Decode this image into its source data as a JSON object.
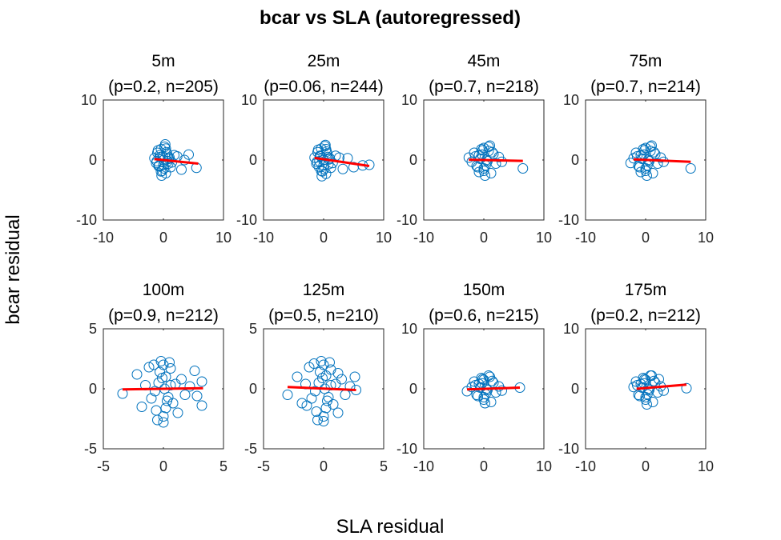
{
  "figure": {
    "title": "bcar vs SLA (autoregressed)",
    "xlabel": "SLA residual",
    "ylabel": "bcar residual"
  },
  "colors": {
    "points": "#0072BD",
    "fit": "#FF0000",
    "axes": "#262626"
  },
  "chart_data": [
    {
      "type": "scatter",
      "title": "5m",
      "subtitle": "(p=0.2, n=205)",
      "xlim": [
        -10,
        10
      ],
      "ylim": [
        -10,
        10
      ],
      "xticks": [
        "-10",
        "0",
        "10"
      ],
      "yticks": [
        "10",
        "0",
        "-10"
      ],
      "x": [
        -1.5,
        -1.2,
        -1.0,
        -0.8,
        -0.6,
        -0.4,
        -0.2,
        0.0,
        0.2,
        0.4,
        0.6,
        0.8,
        1.0,
        1.2,
        -0.9,
        -0.3,
        0.3,
        0.9,
        -1.1,
        0.1,
        -0.5,
        0.5,
        1.4,
        1.8,
        2.3,
        3.0,
        3.5,
        4.2,
        5.5,
        -0.7,
        0.7,
        -0.1,
        0.0,
        0.4,
        -0.4
      ],
      "y": [
        0.3,
        -0.5,
        1.2,
        -1.0,
        0.8,
        1.8,
        -1.8,
        0.0,
        2.2,
        -2.2,
        1.0,
        -0.6,
        0.4,
        -1.2,
        1.6,
        -2.6,
        2.6,
        0.2,
        -0.2,
        -1.4,
        0.5,
        1.3,
        -0.4,
        0.8,
        0.6,
        -1.6,
        0.0,
        0.9,
        -1.3,
        -0.9,
        -0.2,
        0.6,
        -0.8,
        1.9,
        -1.9
      ],
      "fit": {
        "x": [
          -1.5,
          5.8
        ],
        "y": [
          0.15,
          -0.6
        ]
      }
    },
    {
      "type": "scatter",
      "title": "25m",
      "subtitle": "(p=0.06, n=244)",
      "xlim": [
        -10,
        10
      ],
      "ylim": [
        -10,
        10
      ],
      "xticks": [
        "-10",
        "0",
        "10"
      ],
      "yticks": [
        "10",
        "0",
        "-10"
      ],
      "x": [
        -1.5,
        -1.2,
        -1.0,
        -0.8,
        -0.6,
        -0.4,
        -0.2,
        0.0,
        0.2,
        0.4,
        0.6,
        0.8,
        1.0,
        1.2,
        -0.9,
        -0.3,
        0.3,
        0.9,
        -1.1,
        0.1,
        -0.5,
        0.5,
        1.5,
        2.0,
        2.6,
        3.2,
        4.0,
        5.0,
        6.5,
        7.6,
        -0.7,
        0.7,
        0.0,
        0.4,
        -0.4
      ],
      "y": [
        0.4,
        -0.6,
        1.3,
        -1.1,
        0.7,
        1.9,
        -1.9,
        0.0,
        2.3,
        -2.3,
        1.1,
        -0.7,
        0.3,
        -1.3,
        1.7,
        -2.7,
        2.5,
        0.1,
        -0.3,
        -1.5,
        0.6,
        1.4,
        -0.5,
        0.7,
        0.4,
        -1.5,
        0.3,
        -1.2,
        -0.9,
        -0.8,
        -0.2,
        0.5,
        -0.9,
        1.8,
        -1.8
      ],
      "fit": {
        "x": [
          -1.5,
          7.6
        ],
        "y": [
          0.35,
          -1.0
        ]
      }
    },
    {
      "type": "scatter",
      "title": "45m",
      "subtitle": "(p=0.7, n=218)",
      "xlim": [
        -10,
        10
      ],
      "ylim": [
        -10,
        10
      ],
      "xticks": [
        "-10",
        "0",
        "10"
      ],
      "yticks": [
        "10",
        "0",
        "-10"
      ],
      "x": [
        -2.5,
        -2.0,
        -1.6,
        -1.2,
        -0.8,
        -0.4,
        0.0,
        0.4,
        0.8,
        1.2,
        1.6,
        2.0,
        2.5,
        -1.0,
        -0.2,
        0.2,
        1.0,
        -0.6,
        0.6,
        0.0,
        -1.4,
        1.4,
        3.0,
        6.5,
        -0.3,
        0.3,
        0.0,
        -0.8,
        0.8
      ],
      "y": [
        0.4,
        -0.3,
        1.2,
        -1.0,
        0.8,
        1.8,
        -1.8,
        0.0,
        2.2,
        -2.2,
        1.0,
        -0.6,
        0.5,
        -1.2,
        1.6,
        -2.6,
        2.4,
        0.2,
        -0.2,
        -1.4,
        0.6,
        1.3,
        -0.3,
        -1.4,
        0.9,
        -0.9,
        2.0,
        -2.0,
        1.5
      ],
      "fit": {
        "x": [
          -2.5,
          6.5
        ],
        "y": [
          0.05,
          -0.15
        ]
      }
    },
    {
      "type": "scatter",
      "title": "75m",
      "subtitle": "(p=0.7, n=214)",
      "xlim": [
        -10,
        10
      ],
      "ylim": [
        -10,
        10
      ],
      "xticks": [
        "-10",
        "0",
        "10"
      ],
      "yticks": [
        "10",
        "0",
        "-10"
      ],
      "x": [
        -2.5,
        -2.0,
        -1.6,
        -1.2,
        -0.8,
        -0.4,
        0.0,
        0.4,
        0.8,
        1.2,
        1.6,
        2.0,
        2.5,
        -1.0,
        -0.2,
        0.2,
        1.0,
        -0.6,
        0.6,
        0.0,
        -1.4,
        1.4,
        3.0,
        7.5,
        -0.3,
        0.3,
        0.0,
        -0.8,
        0.8
      ],
      "y": [
        -0.5,
        0.3,
        1.2,
        -1.0,
        0.8,
        1.8,
        -1.8,
        0.0,
        2.2,
        -2.2,
        1.0,
        -0.6,
        0.4,
        -1.2,
        1.6,
        -2.6,
        2.4,
        0.2,
        -0.2,
        -1.4,
        0.6,
        1.3,
        -0.3,
        -1.4,
        0.9,
        -0.9,
        2.0,
        -2.0,
        1.5
      ],
      "fit": {
        "x": [
          -2.0,
          7.5
        ],
        "y": [
          0.1,
          -0.3
        ]
      }
    },
    {
      "type": "scatter",
      "title": "100m",
      "subtitle": "(p=0.9, n=212)",
      "xlim": [
        -5,
        5
      ],
      "ylim": [
        -5,
        5
      ],
      "xticks": [
        "-5",
        "0",
        "5"
      ],
      "yticks": [
        "5",
        "0",
        "-5"
      ],
      "x": [
        -3.4,
        -2.2,
        -1.8,
        -1.5,
        -1.2,
        -1.0,
        -0.8,
        -0.6,
        -0.4,
        -0.2,
        0.0,
        0.2,
        0.4,
        0.6,
        0.8,
        1.0,
        1.2,
        1.5,
        1.8,
        2.2,
        2.6,
        2.8,
        3.2,
        3.2,
        -0.5,
        0.5,
        0.0,
        -0.3,
        0.3,
        0.1,
        -0.1,
        0.0,
        0.6,
        -0.7,
        0.2
      ],
      "y": [
        -0.4,
        1.2,
        -1.5,
        0.3,
        1.8,
        -0.8,
        2.0,
        -1.8,
        0.5,
        2.3,
        -2.3,
        1.0,
        -0.7,
        1.7,
        -1.2,
        0.4,
        -2.0,
        0.8,
        -0.5,
        0.2,
        1.5,
        -0.6,
        0.6,
        -1.4,
        -2.6,
        2.2,
        -2.8,
        1.4,
        -1.0,
        0.0,
        0.9,
        2.0,
        0.3,
        -0.2,
        -1.6
      ],
      "fit": {
        "x": [
          -3.4,
          3.3
        ],
        "y": [
          -0.05,
          0.05
        ]
      }
    },
    {
      "type": "scatter",
      "title": "125m",
      "subtitle": "(p=0.5, n=210)",
      "xlim": [
        -5,
        5
      ],
      "ylim": [
        -5,
        5
      ],
      "xticks": [
        "-5",
        "0",
        "5"
      ],
      "yticks": [
        "5",
        "0",
        "-5"
      ],
      "x": [
        -3.0,
        -2.2,
        -1.8,
        -1.5,
        -1.2,
        -1.0,
        -0.8,
        -0.6,
        -0.4,
        -0.2,
        0.0,
        0.2,
        0.4,
        0.6,
        0.8,
        1.0,
        1.2,
        1.5,
        1.8,
        2.2,
        2.6,
        2.7,
        -0.5,
        0.5,
        0.0,
        -0.3,
        0.3,
        0.1,
        -0.1,
        0.0,
        0.6,
        -0.7,
        0.2,
        -1.4,
        1.2
      ],
      "y": [
        -0.5,
        1.0,
        -1.2,
        0.4,
        1.8,
        -0.8,
        2.1,
        -1.9,
        0.5,
        2.3,
        -2.3,
        1.1,
        -0.7,
        1.6,
        -1.3,
        0.4,
        -2.0,
        0.8,
        -0.5,
        0.2,
        1.0,
        -0.1,
        -2.6,
        2.2,
        -2.7,
        1.4,
        -1.0,
        0.0,
        0.9,
        2.0,
        0.3,
        -0.2,
        -1.6,
        -1.4,
        1.3
      ],
      "fit": {
        "x": [
          -3.0,
          2.7
        ],
        "y": [
          0.15,
          -0.1
        ]
      }
    },
    {
      "type": "scatter",
      "title": "150m",
      "subtitle": "(p=0.6, n=215)",
      "xlim": [
        -10,
        10
      ],
      "ylim": [
        -10,
        10
      ],
      "xticks": [
        "-10",
        "0",
        "10"
      ],
      "yticks": [
        "10",
        "0",
        "-10"
      ],
      "x": [
        -2.8,
        -2.0,
        -1.6,
        -1.2,
        -0.8,
        -0.4,
        0.0,
        0.4,
        0.8,
        1.2,
        1.6,
        2.0,
        2.5,
        -1.0,
        -0.2,
        0.2,
        1.0,
        -0.6,
        0.6,
        0.0,
        -1.4,
        1.4,
        3.0,
        6.0,
        -0.3,
        0.3,
        0.0
      ],
      "y": [
        -0.4,
        0.3,
        1.2,
        -1.0,
        0.8,
        1.8,
        -1.8,
        0.0,
        2.2,
        -2.2,
        1.0,
        -0.6,
        0.4,
        -1.2,
        1.6,
        -2.4,
        2.0,
        0.2,
        -0.2,
        -1.4,
        0.6,
        1.3,
        -0.3,
        0.2,
        0.9,
        -0.9,
        1.5
      ],
      "fit": {
        "x": [
          -2.8,
          6.0
        ],
        "y": [
          -0.1,
          0.2
        ]
      }
    },
    {
      "type": "scatter",
      "title": "175m",
      "subtitle": "(p=0.2, n=212)",
      "xlim": [
        -10,
        10
      ],
      "ylim": [
        -10,
        10
      ],
      "xticks": [
        "-10",
        "0",
        "10"
      ],
      "yticks": [
        "10",
        "0",
        "-10"
      ],
      "x": [
        -2.0,
        -1.6,
        -1.2,
        -0.8,
        -0.4,
        0.0,
        0.4,
        0.8,
        1.2,
        1.6,
        2.0,
        2.5,
        -1.0,
        -0.2,
        0.2,
        1.0,
        -0.6,
        0.6,
        0.0,
        -1.4,
        1.4,
        3.0,
        6.8,
        -0.3,
        0.3,
        0.0,
        2.2
      ],
      "y": [
        0.3,
        1.2,
        -1.0,
        0.8,
        1.8,
        -1.8,
        0.0,
        2.2,
        -2.2,
        1.0,
        -0.6,
        0.4,
        -1.2,
        1.6,
        -2.6,
        2.2,
        0.2,
        -0.2,
        -1.4,
        0.6,
        1.3,
        -0.3,
        0.1,
        0.9,
        -0.9,
        1.5,
        1.6
      ],
      "fit": {
        "x": [
          -1.5,
          6.8
        ],
        "y": [
          0.0,
          0.7
        ]
      }
    }
  ]
}
